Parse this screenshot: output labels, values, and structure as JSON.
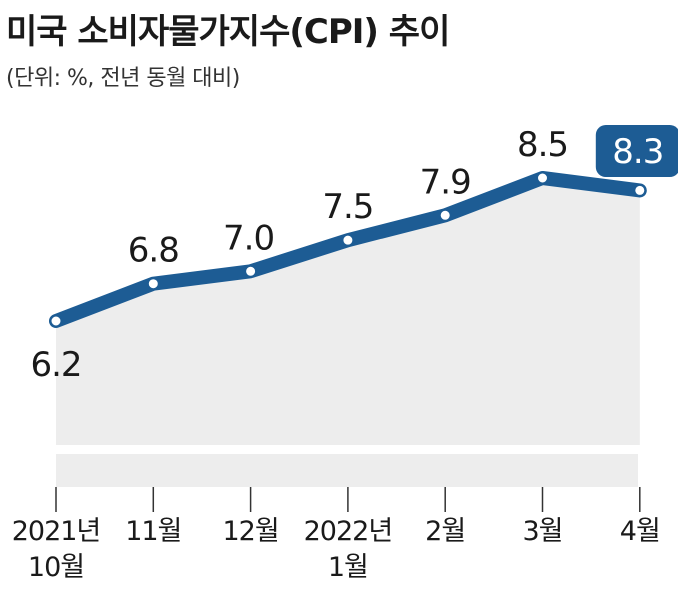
{
  "header": {
    "title": "미국 소비자물가지수(CPI) 추이",
    "subtitle": "(단위: %, 전년 동월 대비)"
  },
  "colors": {
    "line": "#1d5c94",
    "area": "#ededed",
    "highlight": "#1d5c94",
    "marker_fill": "#ffffff"
  },
  "chart_data": {
    "type": "line",
    "title": "미국 소비자물가지수(CPI) 추이",
    "subtitle": "(단위: %, 전년 동월 대비)",
    "categories": [
      [
        "2021년",
        "10월"
      ],
      [
        "11월"
      ],
      [
        "12월"
      ],
      [
        "2022년",
        "1월"
      ],
      [
        "2월"
      ],
      [
        "3월"
      ],
      [
        "4월"
      ]
    ],
    "values": [
      6.2,
      6.8,
      7.0,
      7.5,
      7.9,
      8.5,
      8.3
    ],
    "value_labels": [
      "6.2",
      "6.8",
      "7.0",
      "7.5",
      "7.9",
      "8.5",
      "8.3"
    ],
    "highlight_index": 6,
    "grid": false,
    "legend": "none"
  }
}
